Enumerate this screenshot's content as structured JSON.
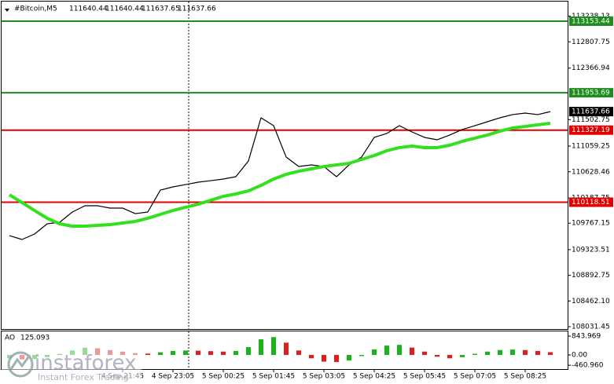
{
  "chart_data": [
    {
      "type": "line",
      "title": "#Bitcoin,M5",
      "header_values": [
        111640.44,
        111640.44,
        111637.65,
        111637.66
      ],
      "categories": [
        null,
        null,
        null,
        null,
        null,
        null,
        null,
        null,
        null,
        "4 Sep 21:45",
        null,
        null,
        null,
        "4 Sep 23:05",
        null,
        null,
        null,
        "5 Sep 00:25",
        null,
        null,
        null,
        "5 Sep 01:45",
        null,
        null,
        null,
        "5 Sep 03:05",
        null,
        null,
        null,
        "5 Sep 04:25",
        null,
        null,
        null,
        "5 Sep 05:45",
        null,
        null,
        null,
        "5 Sep 07:05",
        null,
        null,
        null,
        "5 Sep 08:25",
        null,
        null
      ],
      "series": [
        {
          "color": "#000000",
          "values": [
            109558,
            109493,
            109585,
            109756,
            109783,
            109954,
            110059,
            110059,
            110020,
            110020,
            109927,
            109954,
            110322,
            110375,
            110414,
            110454,
            110480,
            110507,
            110546,
            110810,
            111534,
            111402,
            110876,
            110717,
            110744,
            110717,
            110546,
            110744,
            110876,
            111205,
            111271,
            111402,
            111297,
            111205,
            111165,
            111245,
            111337,
            111402,
            111468,
            111534,
            111587,
            111613,
            111587,
            111637.66
          ]
        },
        {
          "color": "#32e01e",
          "values": [
            110243,
            110112,
            109980,
            109849,
            109756,
            109717,
            109717,
            109730,
            109743,
            109770,
            109796,
            109849,
            109914,
            109980,
            110033,
            110085,
            110151,
            110217,
            110257,
            110309,
            110401,
            110507,
            110586,
            110638,
            110678,
            110717,
            110744,
            110770,
            110836,
            110902,
            110981,
            111034,
            111060,
            111034,
            111034,
            111073,
            111139,
            111192,
            111245,
            111310,
            111363,
            111389,
            111416,
            111442
          ]
        }
      ],
      "levels": [
        {
          "value": 113153.44,
          "color": "#1e8c1e"
        },
        {
          "value": 111953.69,
          "color": "#1e8c1e"
        },
        {
          "value": 111327.19,
          "color": "#e00000"
        },
        {
          "value": 110118.51,
          "color": "#e00000"
        }
      ],
      "ylim": [
        107978.8,
        113271.9
      ],
      "yticks": [
        113238.13,
        112807.75,
        112366.94,
        111502.75,
        111059.25,
        110628.46,
        110187.75,
        109767.15,
        109323.51,
        108892.75,
        {
          "value": 108462.1,
          "label": "108462.10"
        },
        108031.45
      ]
    },
    {
      "type": "bar",
      "title": "AO",
      "up_color": "#19b419",
      "down_color": "#e01e1e",
      "values": [
        -150,
        -200,
        -180,
        -100,
        50,
        200,
        320,
        300,
        220,
        150,
        80,
        60,
        120,
        180,
        200,
        190,
        170,
        150,
        180,
        350,
        700,
        800,
        550,
        200,
        -150,
        -300,
        -320,
        -250,
        -50,
        250,
        420,
        450,
        330,
        150,
        -80,
        -150,
        -100,
        50,
        150,
        220,
        240,
        220,
        180,
        125.093
      ],
      "ylim": [
        -633,
        1055
      ],
      "yticks": [
        843.969,
        {
          "value": 0,
          "label": "0.00"
        },
        {
          "value": -460.96,
          "label": "-460.960"
        }
      ]
    }
  ],
  "watermark": {
    "brand": "instaforex",
    "tagline": "Instant Forex Trading"
  }
}
